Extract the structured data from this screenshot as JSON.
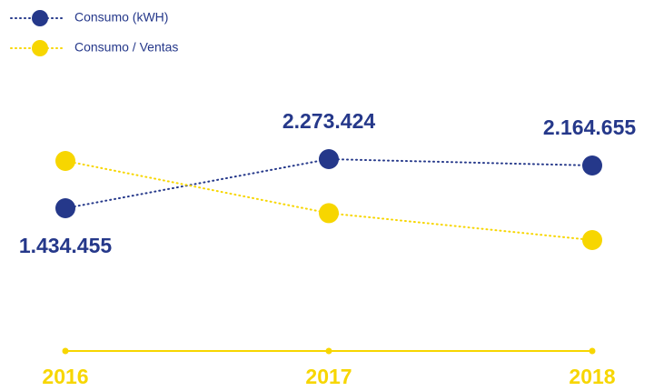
{
  "chart_data": {
    "type": "line",
    "categories": [
      "2016",
      "2017",
      "2018"
    ],
    "series": [
      {
        "name": "Consumo (kWH)",
        "color": "#25388a",
        "values": [
          1434455,
          2273424,
          2164655
        ],
        "value_labels": [
          "1.434.455",
          "2.273.424",
          "2.164.655"
        ]
      },
      {
        "name": "Consumo / Ventas",
        "color": "#f7d600",
        "values": [
          0.95,
          0.62,
          0.45
        ]
      }
    ]
  }
}
